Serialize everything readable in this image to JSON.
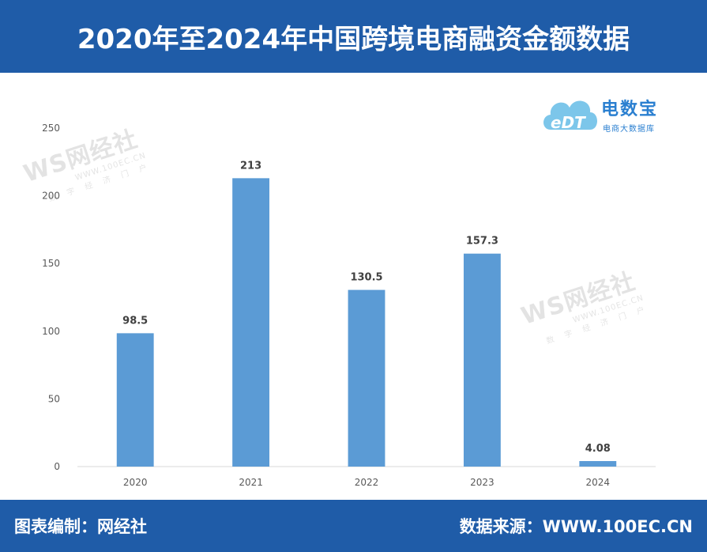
{
  "header": {
    "title": "2020年至2024年中国跨境电商融资金额数据"
  },
  "footer": {
    "left": "图表编制：网经社",
    "right": "数据来源：WWW.100EC.CN"
  },
  "logo": {
    "mark": "eDT",
    "name": "电数宝",
    "sub": "电商大数据库",
    "color": "#2a7fd0"
  },
  "watermark": {
    "main": "WS网经社",
    "url": "WWW.100EC.CN",
    "sub": "数字经济门户"
  },
  "colors": {
    "header_bg": "#1f5ca8",
    "bar": "#5b9bd5",
    "axis": "#d9d9d9",
    "tick_text": "#595959",
    "label_text": "#404040"
  },
  "chart_data": {
    "type": "bar",
    "title": "",
    "xlabel": "",
    "ylabel": "",
    "categories": [
      "2020",
      "2021",
      "2022",
      "2023",
      "2024"
    ],
    "values": [
      98.5,
      213,
      130.5,
      157.3,
      4.08
    ],
    "value_labels": [
      "98.5",
      "213",
      "130.5",
      "157.3",
      "4.08"
    ],
    "ylim": [
      0,
      250
    ],
    "yticks": [
      0,
      50,
      100,
      150,
      200,
      250
    ],
    "grid": false,
    "legend": "none"
  }
}
